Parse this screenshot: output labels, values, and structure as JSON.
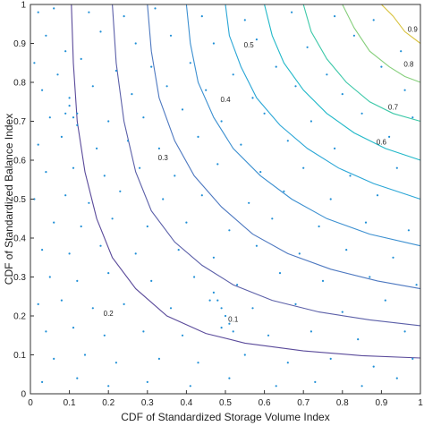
{
  "chart_data": {
    "type": "scatter",
    "subtype": "contour-with-scatter",
    "xlabel": "CDF of Standardized Storage Volume Index",
    "ylabel": "CDF of Standardized Balance Index",
    "xlim": [
      0,
      1
    ],
    "ylim": [
      0,
      1
    ],
    "grid": false,
    "legend": "none",
    "x_ticks": [
      "0",
      "0.1",
      "0.2",
      "0.3",
      "0.4",
      "0.5",
      "0.6",
      "0.7",
      "0.8",
      "0.9",
      "1"
    ],
    "y_ticks": [
      "0",
      "0.1",
      "0.2",
      "0.3",
      "0.4",
      "0.5",
      "0.6",
      "0.7",
      "0.8",
      "0.9",
      "1"
    ],
    "contours": [
      {
        "level": 0.1,
        "label": "0.1",
        "color": "#5a4a9a",
        "points": [
          [
            0.105,
            1.0
          ],
          [
            0.11,
            0.85
          ],
          [
            0.12,
            0.7
          ],
          [
            0.14,
            0.57
          ],
          [
            0.17,
            0.45
          ],
          [
            0.21,
            0.35
          ],
          [
            0.27,
            0.27
          ],
          [
            0.35,
            0.2
          ],
          [
            0.45,
            0.155
          ],
          [
            0.55,
            0.13
          ],
          [
            0.7,
            0.11
          ],
          [
            0.85,
            0.098
          ],
          [
            1.0,
            0.092
          ]
        ],
        "label_at": [
          0.52,
          0.185
        ]
      },
      {
        "level": 0.2,
        "label": "0.2",
        "color": "#5b5fa8",
        "points": [
          [
            0.21,
            1.0
          ],
          [
            0.22,
            0.85
          ],
          [
            0.24,
            0.7
          ],
          [
            0.27,
            0.57
          ],
          [
            0.31,
            0.47
          ],
          [
            0.37,
            0.39
          ],
          [
            0.44,
            0.33
          ],
          [
            0.52,
            0.28
          ],
          [
            0.62,
            0.24
          ],
          [
            0.74,
            0.21
          ],
          [
            0.87,
            0.19
          ],
          [
            1.0,
            0.175
          ]
        ],
        "label_at": [
          0.2,
          0.2
        ]
      },
      {
        "level": 0.3,
        "label": "0.3",
        "color": "#4d78c0",
        "points": [
          [
            0.3,
            1.0
          ],
          [
            0.31,
            0.88
          ],
          [
            0.33,
            0.76
          ],
          [
            0.37,
            0.65
          ],
          [
            0.42,
            0.56
          ],
          [
            0.49,
            0.48
          ],
          [
            0.57,
            0.41
          ],
          [
            0.66,
            0.36
          ],
          [
            0.77,
            0.32
          ],
          [
            0.89,
            0.29
          ],
          [
            1.0,
            0.27
          ]
        ],
        "label_at": [
          0.34,
          0.6
        ]
      },
      {
        "level": 0.4,
        "label": "0.4",
        "color": "#3b8fd0",
        "points": [
          [
            0.4,
            1.0
          ],
          [
            0.41,
            0.9
          ],
          [
            0.43,
            0.8
          ],
          [
            0.47,
            0.71
          ],
          [
            0.52,
            0.63
          ],
          [
            0.59,
            0.56
          ],
          [
            0.67,
            0.5
          ],
          [
            0.76,
            0.45
          ],
          [
            0.87,
            0.41
          ],
          [
            1.0,
            0.38
          ]
        ],
        "label_at": [
          0.5,
          0.75
        ]
      },
      {
        "level": 0.5,
        "label": "0.5",
        "color": "#2aa6d6",
        "points": [
          [
            0.5,
            1.0
          ],
          [
            0.51,
            0.92
          ],
          [
            0.54,
            0.84
          ],
          [
            0.58,
            0.76
          ],
          [
            0.64,
            0.69
          ],
          [
            0.71,
            0.63
          ],
          [
            0.79,
            0.58
          ],
          [
            0.88,
            0.54
          ],
          [
            1.0,
            0.5
          ]
        ],
        "label_at": [
          0.56,
          0.89
        ]
      },
      {
        "level": 0.6,
        "label": "0.6",
        "color": "#20b8c8",
        "points": [
          [
            0.6,
            1.0
          ],
          [
            0.62,
            0.92
          ],
          [
            0.65,
            0.85
          ],
          [
            0.7,
            0.78
          ],
          [
            0.76,
            0.72
          ],
          [
            0.83,
            0.67
          ],
          [
            0.91,
            0.63
          ],
          [
            1.0,
            0.6
          ]
        ],
        "label_at": [
          0.9,
          0.64
        ]
      },
      {
        "level": 0.7,
        "label": "0.7",
        "color": "#3cc8a8",
        "points": [
          [
            0.7,
            1.0
          ],
          [
            0.72,
            0.93
          ],
          [
            0.76,
            0.86
          ],
          [
            0.81,
            0.8
          ],
          [
            0.87,
            0.75
          ],
          [
            0.93,
            0.72
          ],
          [
            1.0,
            0.7
          ]
        ],
        "label_at": [
          0.93,
          0.73
        ]
      },
      {
        "level": 0.8,
        "label": "0.8",
        "color": "#86cf7c",
        "points": [
          [
            0.8,
            1.0
          ],
          [
            0.83,
            0.94
          ],
          [
            0.87,
            0.88
          ],
          [
            0.92,
            0.84
          ],
          [
            0.96,
            0.815
          ],
          [
            1.0,
            0.8
          ]
        ],
        "label_at": [
          0.97,
          0.84
        ]
      },
      {
        "level": 0.9,
        "label": "0.9",
        "color": "#d8c23c",
        "points": [
          [
            0.9,
            1.0
          ],
          [
            0.93,
            0.97
          ],
          [
            0.96,
            0.93
          ],
          [
            1.0,
            0.9
          ]
        ],
        "label_at": [
          0.98,
          0.93
        ]
      }
    ],
    "scatter_color": "#1f8fd6",
    "scatter_points": [
      [
        0.02,
        0.98
      ],
      [
        0.06,
        0.99
      ],
      [
        0.15,
        0.98
      ],
      [
        0.24,
        0.97
      ],
      [
        0.32,
        0.99
      ],
      [
        0.44,
        0.97
      ],
      [
        0.55,
        0.96
      ],
      [
        0.67,
        0.98
      ],
      [
        0.78,
        0.97
      ],
      [
        0.88,
        0.96
      ],
      [
        0.04,
        0.92
      ],
      [
        0.09,
        0.88
      ],
      [
        0.18,
        0.93
      ],
      [
        0.27,
        0.9
      ],
      [
        0.36,
        0.92
      ],
      [
        0.47,
        0.9
      ],
      [
        0.58,
        0.91
      ],
      [
        0.71,
        0.89
      ],
      [
        0.83,
        0.92
      ],
      [
        0.95,
        0.88
      ],
      [
        0.01,
        0.85
      ],
      [
        0.07,
        0.82
      ],
      [
        0.13,
        0.86
      ],
      [
        0.22,
        0.83
      ],
      [
        0.31,
        0.84
      ],
      [
        0.41,
        0.85
      ],
      [
        0.52,
        0.82
      ],
      [
        0.63,
        0.84
      ],
      [
        0.76,
        0.82
      ],
      [
        0.9,
        0.84
      ],
      [
        0.03,
        0.78
      ],
      [
        0.1,
        0.76
      ],
      [
        0.16,
        0.79
      ],
      [
        0.26,
        0.77
      ],
      [
        0.35,
        0.79
      ],
      [
        0.45,
        0.78
      ],
      [
        0.57,
        0.76
      ],
      [
        0.68,
        0.79
      ],
      [
        0.8,
        0.77
      ],
      [
        0.96,
        0.78
      ],
      [
        0.05,
        0.71
      ],
      [
        0.12,
        0.72
      ],
      [
        0.2,
        0.7
      ],
      [
        0.29,
        0.71
      ],
      [
        0.39,
        0.73
      ],
      [
        0.49,
        0.7
      ],
      [
        0.6,
        0.72
      ],
      [
        0.72,
        0.7
      ],
      [
        0.85,
        0.72
      ],
      [
        0.98,
        0.71
      ],
      [
        0.02,
        0.64
      ],
      [
        0.08,
        0.66
      ],
      [
        0.17,
        0.63
      ],
      [
        0.25,
        0.65
      ],
      [
        0.33,
        0.63
      ],
      [
        0.43,
        0.66
      ],
      [
        0.54,
        0.64
      ],
      [
        0.66,
        0.65
      ],
      [
        0.78,
        0.63
      ],
      [
        0.92,
        0.66
      ],
      [
        0.04,
        0.57
      ],
      [
        0.11,
        0.58
      ],
      [
        0.19,
        0.56
      ],
      [
        0.28,
        0.58
      ],
      [
        0.37,
        0.56
      ],
      [
        0.48,
        0.59
      ],
      [
        0.59,
        0.57
      ],
      [
        0.7,
        0.58
      ],
      [
        0.82,
        0.56
      ],
      [
        0.94,
        0.58
      ],
      [
        0.01,
        0.5
      ],
      [
        0.09,
        0.51
      ],
      [
        0.15,
        0.49
      ],
      [
        0.23,
        0.52
      ],
      [
        0.34,
        0.5
      ],
      [
        0.44,
        0.51
      ],
      [
        0.56,
        0.49
      ],
      [
        0.65,
        0.52
      ],
      [
        0.77,
        0.5
      ],
      [
        0.89,
        0.51
      ],
      [
        0.06,
        0.44
      ],
      [
        0.13,
        0.43
      ],
      [
        0.21,
        0.45
      ],
      [
        0.3,
        0.43
      ],
      [
        0.4,
        0.44
      ],
      [
        0.51,
        0.42
      ],
      [
        0.62,
        0.45
      ],
      [
        0.74,
        0.43
      ],
      [
        0.86,
        0.44
      ],
      [
        0.97,
        0.42
      ],
      [
        0.03,
        0.37
      ],
      [
        0.1,
        0.36
      ],
      [
        0.18,
        0.38
      ],
      [
        0.27,
        0.36
      ],
      [
        0.38,
        0.37
      ],
      [
        0.47,
        0.35
      ],
      [
        0.58,
        0.38
      ],
      [
        0.69,
        0.36
      ],
      [
        0.81,
        0.37
      ],
      [
        0.93,
        0.35
      ],
      [
        0.05,
        0.3
      ],
      [
        0.12,
        0.29
      ],
      [
        0.2,
        0.31
      ],
      [
        0.31,
        0.29
      ],
      [
        0.42,
        0.3
      ],
      [
        0.53,
        0.28
      ],
      [
        0.64,
        0.31
      ],
      [
        0.75,
        0.29
      ],
      [
        0.87,
        0.3
      ],
      [
        0.99,
        0.28
      ],
      [
        0.02,
        0.23
      ],
      [
        0.08,
        0.24
      ],
      [
        0.16,
        0.22
      ],
      [
        0.24,
        0.23
      ],
      [
        0.36,
        0.22
      ],
      [
        0.46,
        0.24
      ],
      [
        0.57,
        0.22
      ],
      [
        0.68,
        0.23
      ],
      [
        0.8,
        0.21
      ],
      [
        0.91,
        0.24
      ],
      [
        0.04,
        0.16
      ],
      [
        0.11,
        0.17
      ],
      [
        0.19,
        0.15
      ],
      [
        0.29,
        0.16
      ],
      [
        0.39,
        0.15
      ],
      [
        0.49,
        0.17
      ],
      [
        0.61,
        0.15
      ],
      [
        0.72,
        0.16
      ],
      [
        0.84,
        0.14
      ],
      [
        0.96,
        0.16
      ],
      [
        0.06,
        0.09
      ],
      [
        0.14,
        0.1
      ],
      [
        0.22,
        0.08
      ],
      [
        0.33,
        0.09
      ],
      [
        0.43,
        0.08
      ],
      [
        0.55,
        0.1
      ],
      [
        0.66,
        0.08
      ],
      [
        0.77,
        0.09
      ],
      [
        0.88,
        0.07
      ],
      [
        0.98,
        0.09
      ],
      [
        0.03,
        0.03
      ],
      [
        0.12,
        0.04
      ],
      [
        0.2,
        0.02
      ],
      [
        0.3,
        0.03
      ],
      [
        0.41,
        0.02
      ],
      [
        0.51,
        0.04
      ],
      [
        0.63,
        0.02
      ],
      [
        0.73,
        0.03
      ],
      [
        0.85,
        0.02
      ],
      [
        0.94,
        0.04
      ],
      [
        0.09,
        0.72
      ],
      [
        0.1,
        0.74
      ],
      [
        0.11,
        0.71
      ],
      [
        0.12,
        0.69
      ],
      [
        0.47,
        0.26
      ],
      [
        0.48,
        0.24
      ],
      [
        0.49,
        0.22
      ],
      [
        0.5,
        0.2
      ],
      [
        0.51,
        0.18
      ],
      [
        0.52,
        0.16
      ]
    ]
  }
}
